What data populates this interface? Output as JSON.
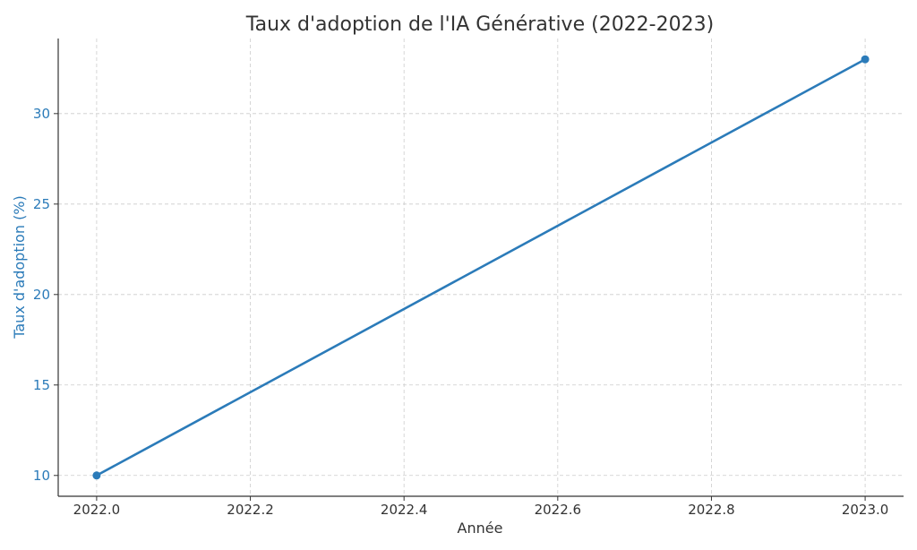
{
  "chart_data": {
    "type": "line",
    "title": "Taux d'adoption de l'IA Générative (2022-2023)",
    "xlabel": "Année",
    "ylabel": "Taux d'adoption (%)",
    "x": [
      2022.0,
      2023.0
    ],
    "series": [
      {
        "values": [
          10,
          33
        ]
      }
    ],
    "xlim": [
      2021.95,
      2023.05
    ],
    "ylim": [
      8.85,
      34.15
    ],
    "xticks": [
      2022.0,
      2022.2,
      2022.4,
      2022.6,
      2022.8,
      2023.0
    ],
    "xtick_labels": [
      "2022.0",
      "2022.2",
      "2022.4",
      "2022.6",
      "2022.8",
      "2023.0"
    ],
    "yticks": [
      10,
      15,
      20,
      25,
      30
    ],
    "ytick_labels": [
      "10",
      "15",
      "20",
      "25",
      "30"
    ],
    "grid": true,
    "markers": true
  },
  "colors": {
    "series": "#2b7bb9",
    "ylabel": "#2b7bb9",
    "ytick": "#2b7bb9",
    "text": "#333333",
    "grid": "#cccccc"
  }
}
